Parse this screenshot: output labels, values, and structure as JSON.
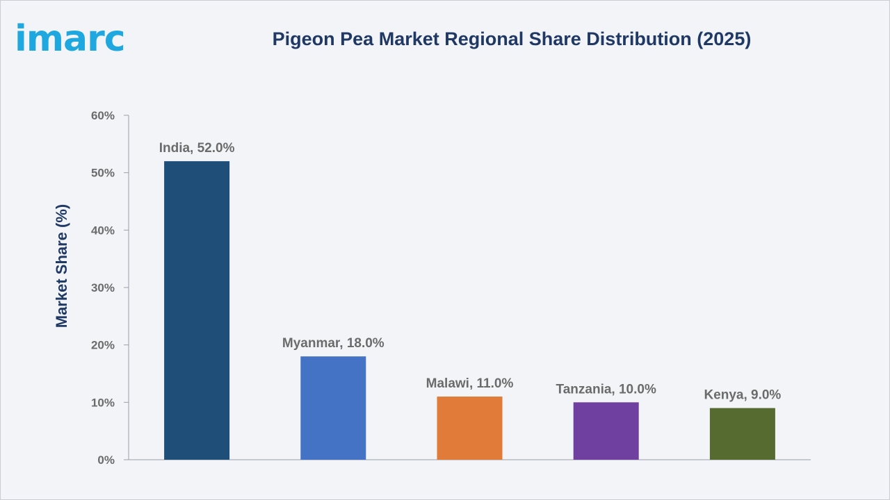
{
  "brand": {
    "logo_text": "imarc",
    "logo_color": "#1fa7e0"
  },
  "chart_data": {
    "type": "bar",
    "title": "Pigeon Pea Market Regional Share Distribution (2025)",
    "xlabel": "",
    "ylabel": "Market Share (%)",
    "categories": [
      "India",
      "Myanmar",
      "Malawi",
      "Tanzania",
      "Kenya"
    ],
    "values": [
      52.0,
      18.0,
      11.0,
      10.0,
      9.0
    ],
    "data_labels": [
      "India, 52.0%",
      "Myanmar, 18.0%",
      "Malawi, 11.0%",
      "Tanzania, 10.0%",
      "Kenya, 9.0%"
    ],
    "colors": [
      "#1f4e79",
      "#4472c4",
      "#e07b39",
      "#7040a0",
      "#556b2f"
    ],
    "ylim": [
      0,
      60
    ],
    "yticks": [
      0,
      10,
      20,
      30,
      40,
      50,
      60
    ],
    "ytick_labels": [
      "0%",
      "10%",
      "20%",
      "30%",
      "40%",
      "50%",
      "60%"
    ],
    "grid": false,
    "legend": "none"
  }
}
